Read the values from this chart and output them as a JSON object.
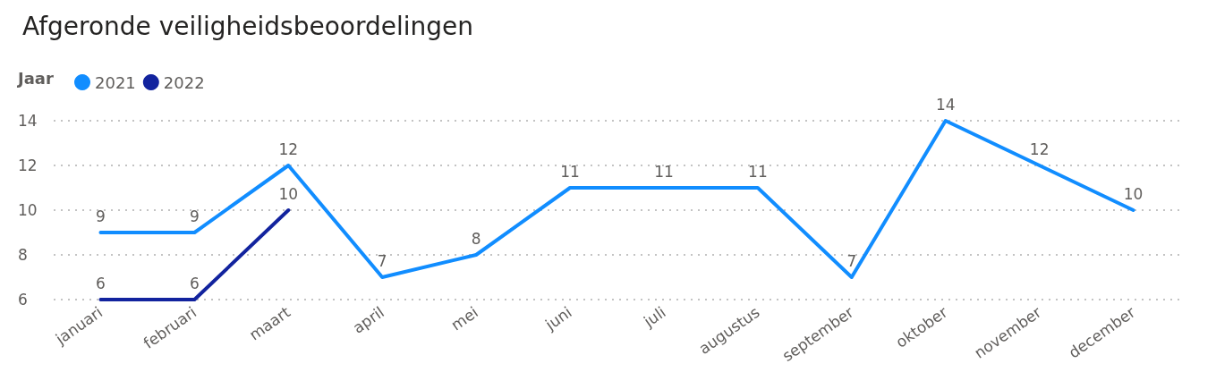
{
  "chart_data": {
    "type": "line",
    "title": "Afgeronde veiligheidsbeoordelingen",
    "legend_title": "Jaar",
    "legend": "top left",
    "categories": [
      "januari",
      "februari",
      "maart",
      "april",
      "mei",
      "juni",
      "juli",
      "augustus",
      "september",
      "oktober",
      "november",
      "december"
    ],
    "series": [
      {
        "name": "2021",
        "color": "#118dff",
        "values": [
          9,
          9,
          12,
          7,
          8,
          11,
          11,
          11,
          7,
          14,
          12,
          10
        ]
      },
      {
        "name": "2022",
        "color": "#12239e",
        "values": [
          6,
          6,
          10,
          null,
          null,
          null,
          null,
          null,
          null,
          null,
          null,
          null
        ]
      }
    ],
    "ylim": [
      6,
      14
    ],
    "yticks": [
      6,
      8,
      10,
      12,
      14
    ],
    "grid": "y",
    "marker": "none",
    "line_style": "solid",
    "data_labels": true
  }
}
